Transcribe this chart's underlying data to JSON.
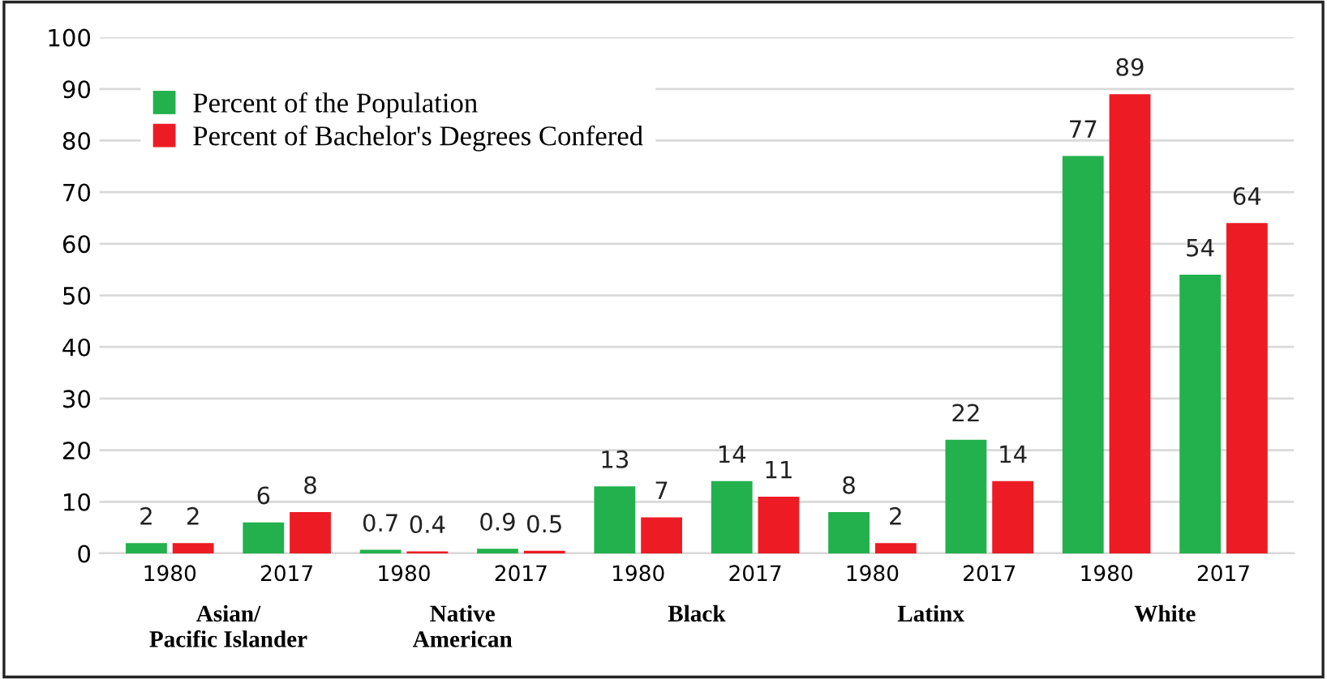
{
  "chart_data": {
    "type": "bar",
    "categories": [
      "1980",
      "2017",
      "1980",
      "2017",
      "1980",
      "2017",
      "1980",
      "2017",
      "1980",
      "2017"
    ],
    "series": [
      {
        "name": "Percent of the Population",
        "color": "#22b14c",
        "values": [
          2,
          6,
          0.7,
          0.9,
          13,
          14,
          8,
          22,
          77,
          54
        ]
      },
      {
        "name": "Percent of Bachelor's Degrees Confered",
        "color": "#ed1c24",
        "values": [
          2,
          8,
          0.4,
          0.5,
          7,
          11,
          2,
          14,
          89,
          64
        ]
      }
    ],
    "annotations": [
      "Asian/\nPacific Islander",
      "Native\nAmerican",
      "Black",
      "Latinx",
      "White"
    ],
    "ylim": [
      0,
      100
    ],
    "yticks": [
      0,
      10,
      20,
      30,
      40,
      50,
      60,
      70,
      80,
      90,
      100
    ],
    "grid": "y",
    "legend": "top left",
    "data_labels": true
  }
}
